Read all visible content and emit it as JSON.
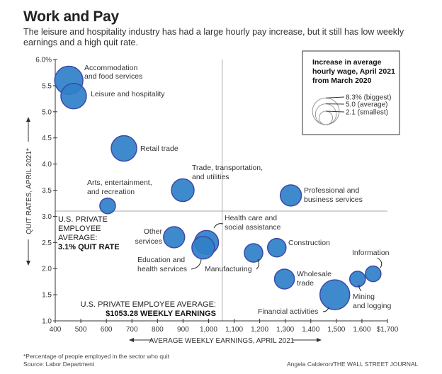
{
  "header": {
    "title": "Work and Pay",
    "subtitle": "The leisure and hospitality industry has had a large hourly pay increase, but it still has low weekly earnings and a high quit rate."
  },
  "chart_data": {
    "type": "scatter",
    "subtype": "bubble",
    "xlabel": "AVERAGE WEEKLY EARNINGS, APRIL 2021",
    "ylabel": "QUIT RATES, APRIL 2021*",
    "xlim": [
      400,
      1700
    ],
    "ylim": [
      1.0,
      6.0
    ],
    "x_ticks": [
      400,
      500,
      600,
      700,
      800,
      900,
      1000,
      1100,
      1200,
      1300,
      1400,
      1500,
      1600,
      1700
    ],
    "x_tick_labels": [
      "400",
      "500",
      "600",
      "700",
      "800",
      "900",
      "1,000",
      "1,100",
      "1,200",
      "1,300",
      "1,400",
      "1,500",
      "1,600",
      "$1,700"
    ],
    "y_ticks": [
      1.0,
      1.5,
      2.0,
      2.5,
      3.0,
      3.5,
      4.0,
      4.5,
      5.0,
      5.5,
      6.0
    ],
    "y_tick_labels": [
      "1.0",
      "1.5",
      "2.0",
      "2.5",
      "3.0",
      "3.5",
      "4.0",
      "4.5",
      "5.0",
      "5.5",
      "6.0%"
    ],
    "grid": false,
    "bubble_color": "#2f80c8",
    "bubble_edge": "#3c4aa8",
    "size_legend": {
      "title": "Increase in average hourly wage, April 2021 from March 2020",
      "entries": [
        {
          "value": 8.3,
          "label": "8.3% (biggest)"
        },
        {
          "value": 5.0,
          "label": "5.0 (average)"
        },
        {
          "value": 2.1,
          "label": "2.1 (smallest)"
        }
      ]
    },
    "points": [
      {
        "label": "Accommodation and food services",
        "x": 453,
        "y": 5.6,
        "wage_increase": 7.5
      },
      {
        "label": "Leisure and hospitality",
        "x": 472,
        "y": 5.3,
        "wage_increase": 6.1
      },
      {
        "label": "Retail trade",
        "x": 669,
        "y": 4.3,
        "wage_increase": 6.1
      },
      {
        "label": "Trade, transportation, and utilities",
        "x": 899,
        "y": 3.5,
        "wage_increase": 4.8
      },
      {
        "label": "Arts, entertainment, and recreation",
        "x": 605,
        "y": 3.2,
        "wage_increase": 2.3
      },
      {
        "label": "Professional and business services",
        "x": 1322,
        "y": 3.4,
        "wage_increase": 4.2
      },
      {
        "label": "Other services",
        "x": 865,
        "y": 2.6,
        "wage_increase": 4.2
      },
      {
        "label": "Health care and social assistance",
        "x": 992,
        "y": 2.5,
        "wage_increase": 5.4
      },
      {
        "label": "Education and health services",
        "x": 979,
        "y": 2.4,
        "wage_increase": 4.8
      },
      {
        "label": "Manufacturing",
        "x": 1176,
        "y": 2.3,
        "wage_increase": 3.2
      },
      {
        "label": "Construction",
        "x": 1267,
        "y": 2.4,
        "wage_increase": 3.2
      },
      {
        "label": "Wholesale trade",
        "x": 1297,
        "y": 1.8,
        "wage_increase": 3.7
      },
      {
        "label": "Financial activities",
        "x": 1494,
        "y": 1.5,
        "wage_increase": 8.3
      },
      {
        "label": "Mining and logging",
        "x": 1583,
        "y": 1.8,
        "wage_increase": 2.3
      },
      {
        "label": "Information",
        "x": 1644,
        "y": 1.9,
        "wage_increase": 2.3
      }
    ],
    "reference_lines": {
      "quit_rate_avg": {
        "value": 3.1,
        "text1": "U.S. PRIVATE",
        "text2": "EMPLOYEE",
        "text3": "AVERAGE:",
        "text4": "3.1% QUIT RATE"
      },
      "earnings_avg": {
        "value": 1053.28,
        "text1": "U.S. PRIVATE EMPLOYEE AVERAGE:",
        "text2": "$1053.28 WEEKLY EARNINGS"
      }
    },
    "point_labels": {
      "accommodation": [
        "Accommodation",
        "and food services"
      ],
      "leisure": [
        "Leisure and hospitality"
      ],
      "retail": [
        "Retail trade"
      ],
      "trade": [
        "Trade, transportation,",
        "and utilities"
      ],
      "arts": [
        "Arts, entertainment,",
        "and recreation"
      ],
      "professional": [
        "Professional and",
        "business services"
      ],
      "other": [
        "Other",
        "services"
      ],
      "health": [
        "Health care and",
        "social assistance"
      ],
      "education": [
        "Education and",
        "health services"
      ],
      "manufacturing": [
        "Manufacturing"
      ],
      "construction": [
        "Construction"
      ],
      "wholesale": [
        "Wholesale",
        "trade"
      ],
      "financial": [
        "Financial activities"
      ],
      "mining": [
        "Mining",
        "and logging"
      ],
      "information": [
        "Information"
      ]
    }
  },
  "footer": {
    "footnote": "*Percentage of people employed in the sector who quit",
    "source": "Source: Labor Department",
    "credit": "Angela Calderon/THE WALL STREET JOURNAL"
  }
}
